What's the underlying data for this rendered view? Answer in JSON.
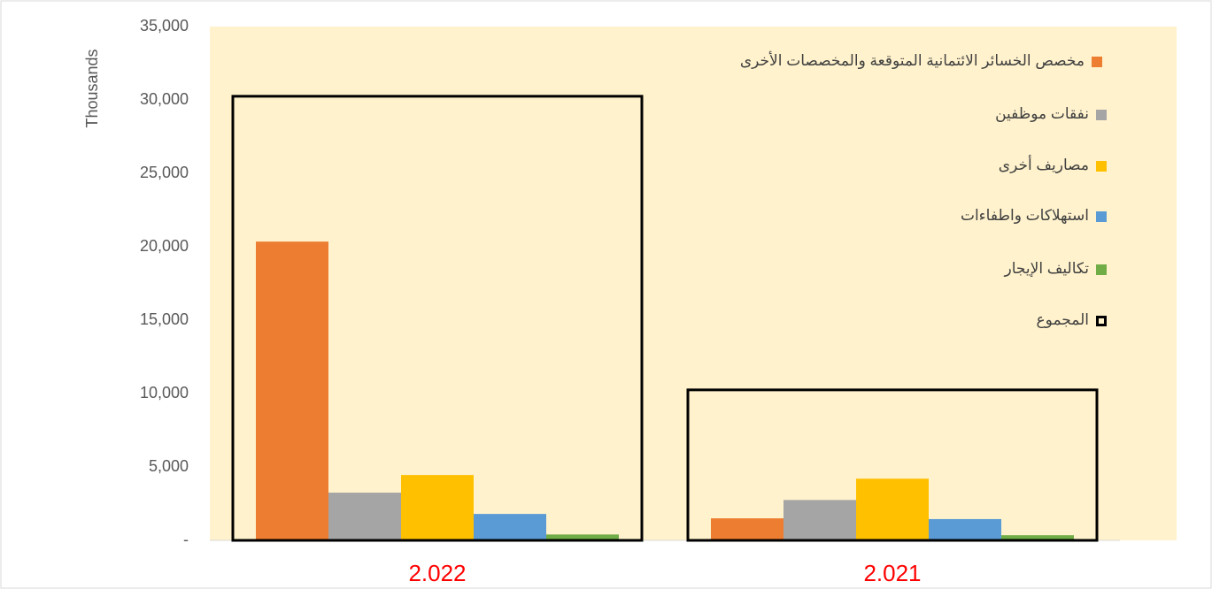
{
  "chart_data": {
    "type": "bar",
    "y_axis_label": "Thousands",
    "categories": [
      "2.022",
      "2.021"
    ],
    "series": [
      {
        "name": "مخصص الخسائر الائتمانية المتوقعة والمخصصات الأخرى",
        "color": "#ed7d31",
        "values": [
          20350,
          1500
        ]
      },
      {
        "name": "نفقات موظفين",
        "color": "#a5a5a5",
        "values": [
          3250,
          2750
        ]
      },
      {
        "name": "مصاريف أخرى",
        "color": "#ffc000",
        "values": [
          4450,
          4200
        ]
      },
      {
        "name": "استهلاكات واطفاءات",
        "color": "#5b9bd5",
        "values": [
          1800,
          1450
        ]
      },
      {
        "name": "تكاليف الإيجار",
        "color": "#70ad47",
        "values": [
          400,
          350
        ]
      },
      {
        "name": "المجموع",
        "color": "#000000",
        "values": [
          30250,
          10250
        ],
        "outline": true
      }
    ],
    "ylim": [
      0,
      35000
    ],
    "yticks": [
      {
        "value": 0,
        "label": "-"
      },
      {
        "value": 5000,
        "label": "5,000"
      },
      {
        "value": 10000,
        "label": "10,000"
      },
      {
        "value": 15000,
        "label": "15,000"
      },
      {
        "value": 20000,
        "label": "20,000"
      },
      {
        "value": 25000,
        "label": "25,000"
      },
      {
        "value": 30000,
        "label": "30,000"
      },
      {
        "value": 35000,
        "label": "35,000"
      }
    ],
    "category_color": "#ff0000",
    "plot_background": "#fff2cc"
  }
}
